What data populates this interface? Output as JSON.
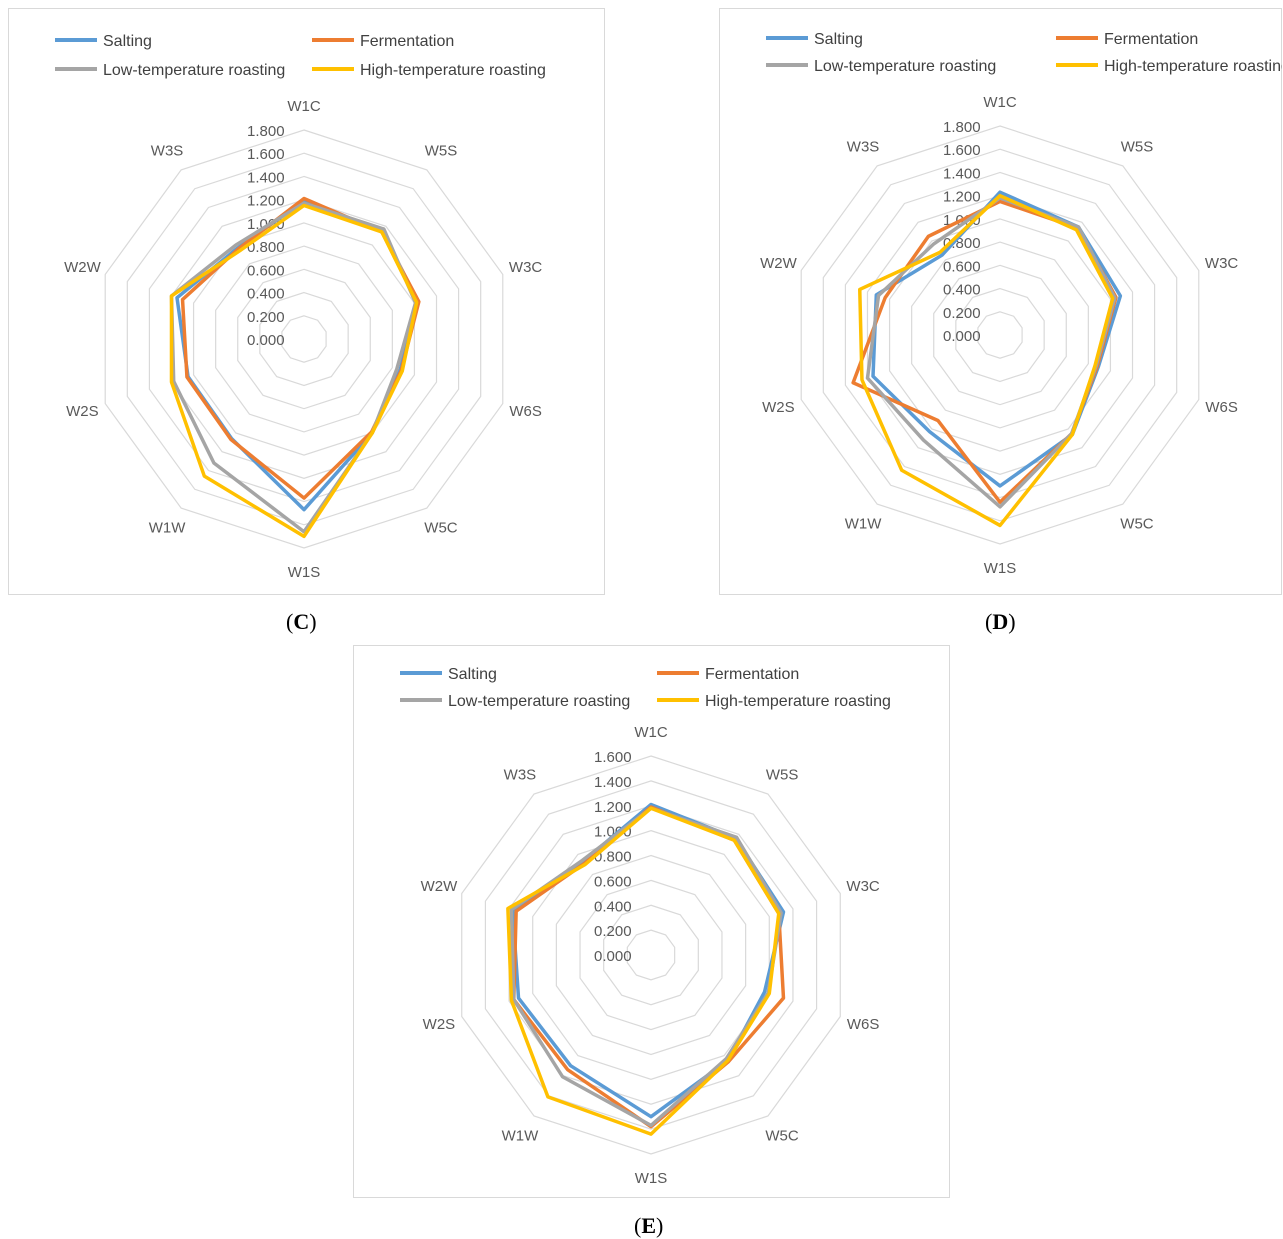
{
  "charts": [
    {
      "panel_label": "C",
      "chart_data": {
        "type": "radar",
        "axes": [
          "W1C",
          "W5S",
          "W3C",
          "W6S",
          "W5C",
          "W1S",
          "W1W",
          "W2S",
          "W2W",
          "W3S"
        ],
        "r_ticks": [
          "0.000",
          "0.200",
          "0.400",
          "0.600",
          "0.800",
          "1.000",
          "1.200",
          "1.400",
          "1.600",
          "1.800"
        ],
        "rlim": [
          0,
          1.8
        ],
        "grid": true,
        "legend_position": "top",
        "series": [
          {
            "name": "Salting",
            "color": "#5b9bd5",
            "values": [
              1.19,
              1.15,
              1.03,
              0.87,
              1.0,
              1.47,
              1.06,
              1.05,
              1.15,
              0.97
            ]
          },
          {
            "name": "Fermentation",
            "color": "#ed7d31",
            "values": [
              1.21,
              1.14,
              1.04,
              0.88,
              0.99,
              1.37,
              1.07,
              1.06,
              1.1,
              0.96
            ]
          },
          {
            "name": "Low-temperature roasting",
            "color": "#a5a5a5",
            "values": [
              1.17,
              1.17,
              1.01,
              0.84,
              1.0,
              1.66,
              1.32,
              1.18,
              1.2,
              1.0
            ]
          },
          {
            "name": "High-temperature roasting",
            "color": "#ffc000",
            "values": [
              1.15,
              1.14,
              1.02,
              0.89,
              1.0,
              1.7,
              1.46,
              1.2,
              1.2,
              0.94
            ]
          }
        ]
      }
    },
    {
      "panel_label": "D",
      "chart_data": {
        "type": "radar",
        "axes": [
          "W1C",
          "W5S",
          "W3C",
          "W6S",
          "W5C",
          "W1S",
          "W1W",
          "W2S",
          "W2W",
          "W3S"
        ],
        "r_ticks": [
          "0.000",
          "0.200",
          "0.400",
          "0.600",
          "0.800",
          "1.000",
          "1.200",
          "1.400",
          "1.600",
          "1.800"
        ],
        "rlim": [
          0,
          1.8
        ],
        "grid": true,
        "legend_position": "top",
        "series": [
          {
            "name": "Salting",
            "color": "#5b9bd5",
            "values": [
              1.23,
              1.15,
              1.09,
              0.89,
              1.06,
              1.3,
              1.03,
              1.15,
              1.12,
              0.85
            ]
          },
          {
            "name": "Fermentation",
            "color": "#ed7d31",
            "values": [
              1.15,
              1.14,
              1.05,
              0.88,
              1.05,
              1.44,
              0.91,
              1.33,
              1.04,
              1.05
            ]
          },
          {
            "name": "Low-temperature roasting",
            "color": "#a5a5a5",
            "values": [
              1.18,
              1.15,
              1.04,
              0.87,
              1.05,
              1.48,
              1.12,
              1.2,
              1.1,
              0.97
            ]
          },
          {
            "name": "High-temperature roasting",
            "color": "#ffc000",
            "values": [
              1.2,
              1.12,
              1.02,
              0.86,
              1.06,
              1.64,
              1.44,
              1.25,
              1.27,
              0.88
            ]
          }
        ]
      }
    },
    {
      "panel_label": "E",
      "chart_data": {
        "type": "radar",
        "axes": [
          "W1C",
          "W5S",
          "W3C",
          "W6S",
          "W5C",
          "W1S",
          "W1W",
          "W2S",
          "W2W",
          "W3S"
        ],
        "r_ticks": [
          "0.000",
          "0.200",
          "0.400",
          "0.600",
          "0.800",
          "1.000",
          "1.200",
          "1.400",
          "1.600"
        ],
        "rlim": [
          0,
          1.6
        ],
        "grid": true,
        "legend_position": "top",
        "series": [
          {
            "name": "Salting",
            "color": "#5b9bd5",
            "values": [
              1.21,
              1.16,
              1.12,
              0.96,
              1.05,
              1.3,
              1.1,
              1.12,
              1.17,
              0.93
            ]
          },
          {
            "name": "Fermentation",
            "color": "#ed7d31",
            "values": [
              1.19,
              1.14,
              1.08,
              1.12,
              1.06,
              1.38,
              1.14,
              1.16,
              1.14,
              0.91
            ]
          },
          {
            "name": "Low-temperature roasting",
            "color": "#a5a5a5",
            "values": [
              1.18,
              1.17,
              1.1,
              0.99,
              1.03,
              1.37,
              1.21,
              1.16,
              1.18,
              0.94
            ]
          },
          {
            "name": "High-temperature roasting",
            "color": "#ffc000",
            "values": [
              1.18,
              1.14,
              1.08,
              1.0,
              1.05,
              1.44,
              1.41,
              1.18,
              1.21,
              0.9
            ]
          }
        ]
      }
    }
  ]
}
